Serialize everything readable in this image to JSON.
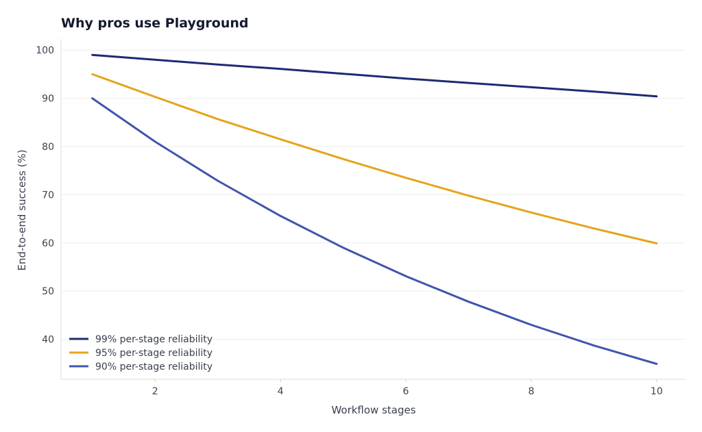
{
  "chart_data": {
    "type": "line",
    "title": "Why pros use Playground",
    "xlabel": "Workflow stages",
    "ylabel": "End-to-end success (%)",
    "x": [
      1,
      2,
      3,
      4,
      5,
      6,
      7,
      8,
      9,
      10
    ],
    "xlim": [
      0.5,
      10.45
    ],
    "ylim": [
      31.7,
      102.3
    ],
    "xticks": [
      2,
      4,
      6,
      8,
      10
    ],
    "yticks": [
      40,
      50,
      60,
      70,
      80,
      90,
      100
    ],
    "grid": "horizontal",
    "legend_position": "lower-left",
    "series": [
      {
        "name": "99% per-stage reliability",
        "color": "#1c2a74",
        "values": [
          99.0,
          98.0,
          97.0,
          96.1,
          95.1,
          94.1,
          93.2,
          92.3,
          91.4,
          90.4
        ]
      },
      {
        "name": "95% per-stage reliability",
        "color": "#e5a31c",
        "values": [
          95.0,
          90.3,
          85.7,
          81.5,
          77.4,
          73.5,
          69.8,
          66.3,
          63.0,
          59.9
        ]
      },
      {
        "name": "90% per-stage reliability",
        "color": "#4154ad",
        "values": [
          90.0,
          81.0,
          72.9,
          65.6,
          59.0,
          53.1,
          47.8,
          43.0,
          38.7,
          34.9
        ]
      }
    ]
  }
}
